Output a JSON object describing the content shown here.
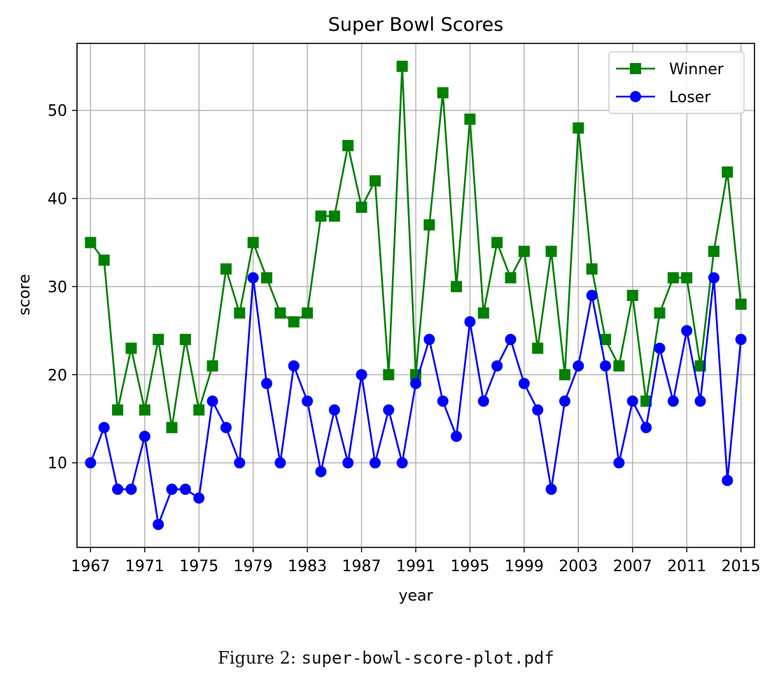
{
  "chart_data": {
    "type": "line",
    "title": "Super Bowl Scores",
    "xlabel": "year",
    "ylabel": "score",
    "x": [
      1967,
      1968,
      1969,
      1970,
      1971,
      1972,
      1973,
      1974,
      1975,
      1976,
      1977,
      1978,
      1979,
      1980,
      1981,
      1982,
      1983,
      1984,
      1985,
      1986,
      1987,
      1988,
      1989,
      1990,
      1991,
      1992,
      1993,
      1994,
      1995,
      1996,
      1997,
      1998,
      1999,
      2000,
      2001,
      2002,
      2003,
      2004,
      2005,
      2006,
      2007,
      2008,
      2009,
      2010,
      2011,
      2012,
      2013,
      2014,
      2015
    ],
    "series": [
      {
        "name": "Winner",
        "color": "#008000",
        "marker": "square",
        "values": [
          35,
          33,
          16,
          23,
          16,
          24,
          14,
          24,
          16,
          21,
          32,
          27,
          35,
          31,
          27,
          26,
          27,
          38,
          38,
          46,
          39,
          42,
          20,
          55,
          20,
          37,
          52,
          30,
          49,
          27,
          35,
          31,
          34,
          23,
          34,
          20,
          48,
          32,
          24,
          21,
          29,
          17,
          27,
          31,
          31,
          21,
          34,
          43,
          28
        ]
      },
      {
        "name": "Loser",
        "color": "#0000ff",
        "marker": "circle",
        "values": [
          10,
          14,
          7,
          7,
          13,
          3,
          7,
          7,
          6,
          17,
          14,
          10,
          31,
          19,
          10,
          21,
          17,
          9,
          16,
          10,
          20,
          10,
          16,
          10,
          19,
          24,
          17,
          13,
          26,
          17,
          21,
          24,
          19,
          16,
          7,
          17,
          21,
          29,
          21,
          10,
          17,
          14,
          23,
          17,
          25,
          17,
          31,
          8,
          24
        ]
      }
    ],
    "xticks": [
      1967,
      1971,
      1975,
      1979,
      1983,
      1987,
      1991,
      1995,
      1999,
      2003,
      2007,
      2011,
      2015
    ],
    "yticks": [
      10,
      20,
      30,
      40,
      50
    ],
    "xlim": [
      1966.0,
      2016.0
    ],
    "ylim": [
      0.4,
      57.6
    ],
    "grid": true,
    "legend_position": "top-right"
  },
  "caption": {
    "prefix": "Figure 2: ",
    "filename": "super-bowl-score-plot.pdf"
  }
}
